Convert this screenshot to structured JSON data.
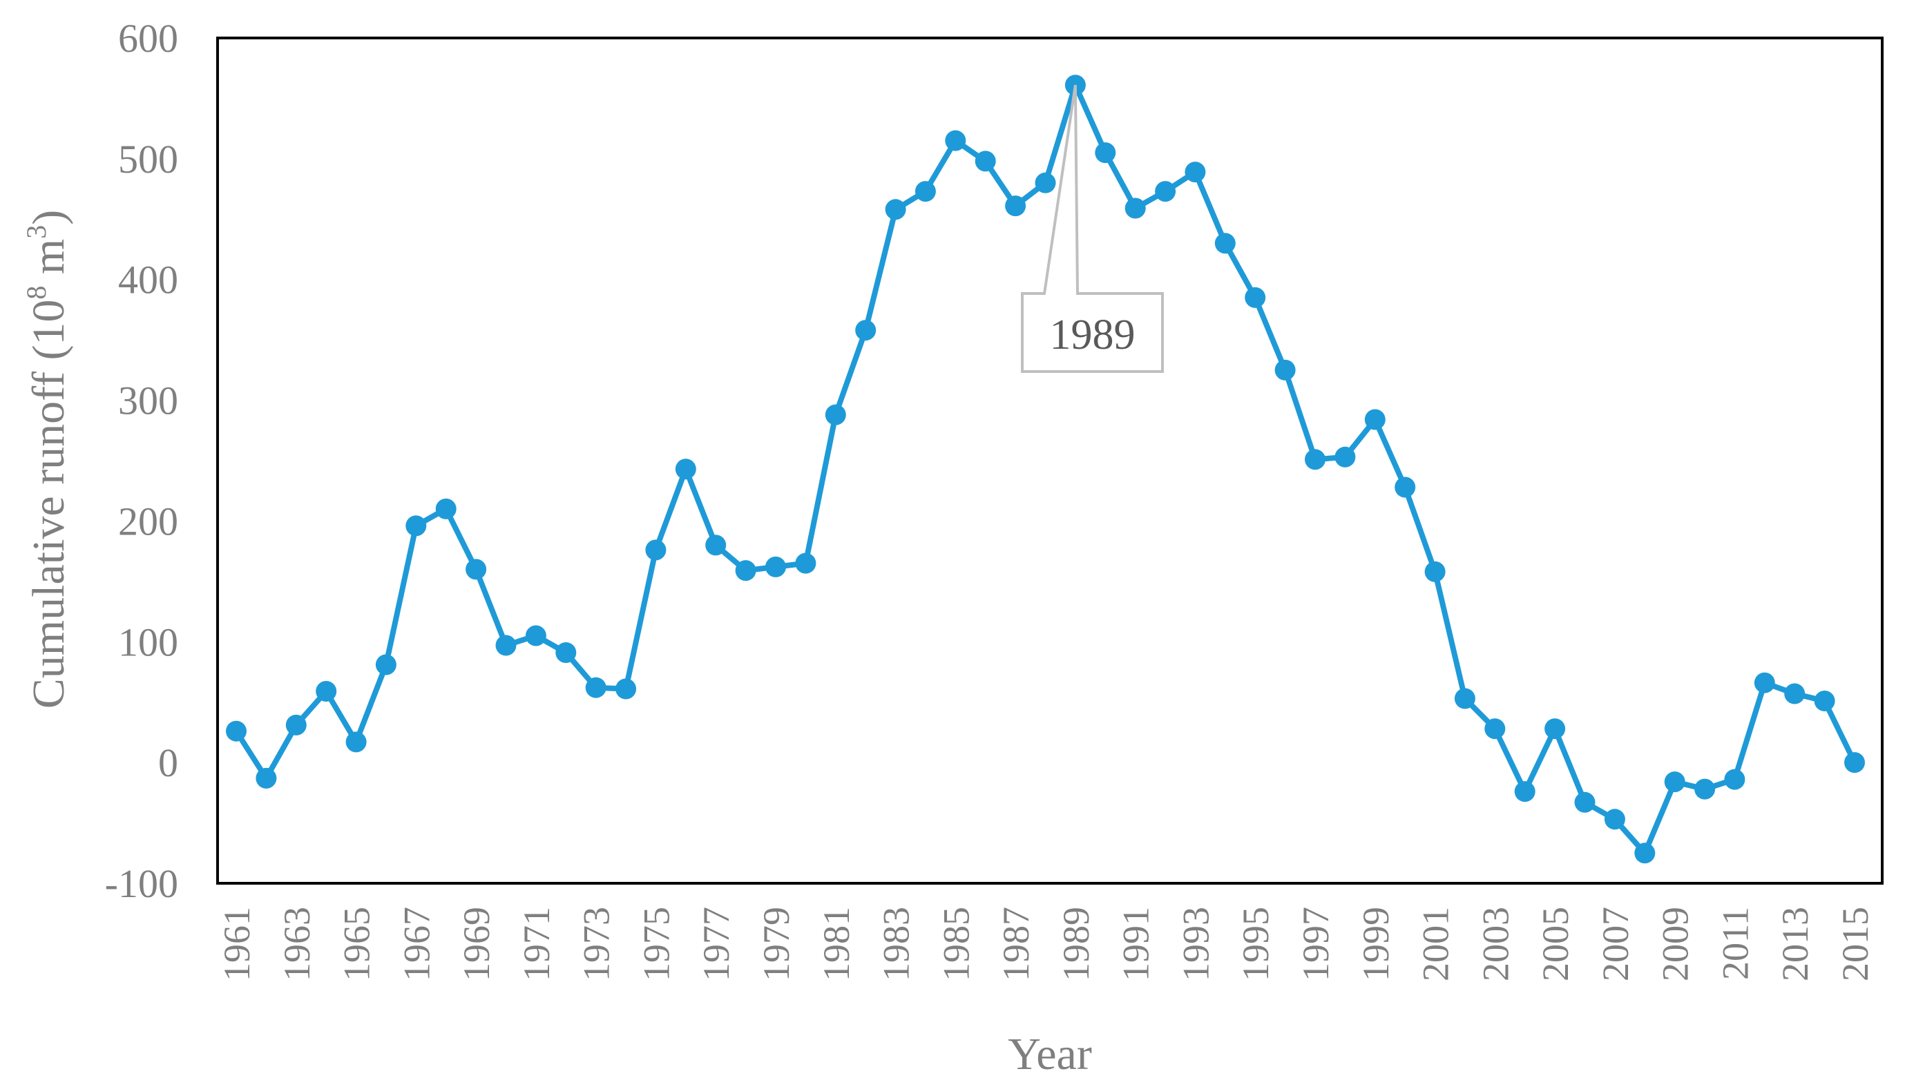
{
  "chart_data": {
    "type": "line",
    "title": "",
    "xlabel": "Year",
    "ylabel": "Cumulative runoff (10",
    "ylabel_sup1": "8",
    "ylabel_mid": " m",
    "ylabel_sup2": "3",
    "ylabel_end": ")",
    "ylim": [
      -100,
      600
    ],
    "yticks": [
      "600",
      "500",
      "400",
      "300",
      "200",
      "100",
      "0",
      "-100"
    ],
    "x_tick_labels": [
      "1961",
      "1963",
      "1965",
      "1967",
      "1969",
      "1971",
      "1973",
      "1975",
      "1977",
      "1979",
      "1981",
      "1983",
      "1985",
      "1987",
      "1989",
      "1991",
      "1993",
      "1995",
      "1997",
      "1999",
      "2001",
      "2003",
      "2005",
      "2007",
      "2009",
      "2011",
      "2013",
      "2015"
    ],
    "series_color": "#1f9ad8",
    "x": [
      1961,
      1962,
      1963,
      1964,
      1965,
      1966,
      1967,
      1968,
      1969,
      1970,
      1971,
      1972,
      1973,
      1974,
      1975,
      1976,
      1977,
      1978,
      1979,
      1980,
      1981,
      1982,
      1983,
      1984,
      1985,
      1986,
      1987,
      1988,
      1989,
      1990,
      1991,
      1992,
      1993,
      1994,
      1995,
      1996,
      1997,
      1998,
      1999,
      2000,
      2001,
      2002,
      2003,
      2004,
      2005,
      2006,
      2007,
      2008,
      2009,
      2010,
      2011,
      2012,
      2013,
      2014,
      2015
    ],
    "values": [
      26,
      -13,
      31,
      59,
      17,
      81,
      196,
      210,
      160,
      97,
      105,
      91,
      62,
      61,
      176,
      243,
      180,
      159,
      162,
      165,
      288,
      358,
      458,
      473,
      515,
      498,
      461,
      480,
      561,
      505,
      459,
      473,
      489,
      430,
      385,
      325,
      251,
      253,
      284,
      228,
      158,
      53,
      28,
      -24,
      28,
      -33,
      -47,
      -75,
      -16,
      -22,
      -14,
      66,
      57,
      51,
      0
    ],
    "annotation": {
      "label": "1989",
      "x": 1989,
      "y": 561
    },
    "grid": false,
    "frame": true,
    "legend": "none"
  }
}
